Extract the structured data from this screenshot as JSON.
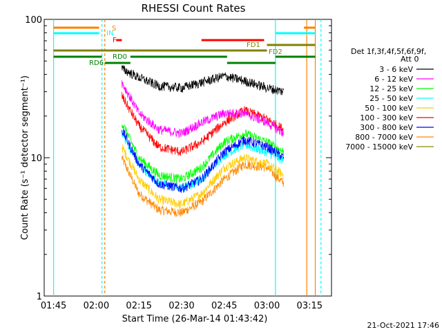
{
  "chart_data": {
    "type": "line",
    "title": "RHESSI Count Rates",
    "xlabel": "Start Time (26-Mar-14 01:43:42)",
    "ylabel": "Count Rate (s⁻¹ detector segment⁻¹)",
    "yscale": "log",
    "ylim": [
      1,
      100
    ],
    "xlim_minutes_after_start": [
      -2.0,
      99.0
    ],
    "x_ticks": [
      "01:45",
      "02:00",
      "02:15",
      "02:30",
      "02:45",
      "03:00",
      "03:15"
    ],
    "y_ticks": [
      "1",
      "10",
      "100"
    ],
    "grid": false,
    "legend_position": "right",
    "legend_header": [
      "Det 1f,3f,4f,5f,6f,9f,",
      "Att 0"
    ],
    "series": [
      {
        "name": "3 - 6 keV",
        "color": "#000000",
        "x": [
          "02:09",
          "02:15",
          "02:22",
          "02:30",
          "02:37",
          "02:45",
          "02:52",
          "03:00",
          "03:06"
        ],
        "values": [
          44,
          38,
          33,
          32,
          35,
          39,
          36,
          32,
          30
        ]
      },
      {
        "name": "6 - 12 keV",
        "color": "#ff00ff",
        "x": [
          "02:09",
          "02:15",
          "02:22",
          "02:30",
          "02:37",
          "02:45",
          "02:52",
          "03:00",
          "03:06"
        ],
        "values": [
          35,
          21,
          16,
          15,
          18,
          21,
          21,
          18,
          15
        ]
      },
      {
        "name": "12 - 25 keV",
        "color": "#00ff00",
        "x": [
          "02:09",
          "02:15",
          "02:22",
          "02:30",
          "02:37",
          "02:45",
          "02:52",
          "03:00",
          "03:06"
        ],
        "values": [
          18,
          10,
          7.5,
          7,
          8.5,
          13,
          15,
          13,
          11
        ]
      },
      {
        "name": "25 - 50 keV",
        "color": "#00ffff",
        "x": [
          "02:09",
          "02:15",
          "02:22",
          "02:30",
          "02:37",
          "02:45",
          "02:52",
          "03:00",
          "03:06"
        ],
        "values": [
          15,
          9,
          6.5,
          6,
          7,
          10.5,
          12.5,
          11,
          9.5
        ]
      },
      {
        "name": "50 - 100 keV",
        "color": "#ffcc00",
        "x": [
          "02:09",
          "02:15",
          "02:22",
          "02:30",
          "02:37",
          "02:45",
          "02:52",
          "03:00",
          "03:06"
        ],
        "values": [
          12,
          7,
          5,
          4.6,
          5.5,
          8.5,
          10,
          9,
          7.5
        ]
      },
      {
        "name": "100 - 300 keV",
        "color": "#ff0000",
        "x": [
          "02:09",
          "02:15",
          "02:22",
          "02:30",
          "02:37",
          "02:45",
          "02:52",
          "03:00",
          "03:06"
        ],
        "values": [
          28,
          17,
          12,
          11,
          13,
          18,
          22,
          19,
          16
        ]
      },
      {
        "name": "300 - 800 keV",
        "color": "#0000ff",
        "x": [
          "02:09",
          "02:15",
          "02:22",
          "02:30",
          "02:37",
          "02:45",
          "02:52",
          "03:00",
          "03:06"
        ],
        "values": [
          16,
          9,
          6.5,
          6,
          7,
          11,
          13.5,
          12,
          10
        ]
      },
      {
        "name": "800 - 7000 keV",
        "color": "#ff8800",
        "x": [
          "02:09",
          "02:15",
          "02:22",
          "02:30",
          "02:37",
          "02:45",
          "02:52",
          "03:00",
          "03:06"
        ],
        "values": [
          10,
          5.5,
          4.2,
          4,
          4.8,
          7,
          9,
          8.5,
          6.5
        ]
      },
      {
        "name": "7000 - 15000 keV",
        "color": "#8b8b00",
        "x": [],
        "values": []
      }
    ],
    "flag_bars": [
      {
        "label": "S",
        "color": "#ff8000",
        "ranges": [
          [
            "01:45",
            "02:01"
          ],
          [
            "03:13",
            "03:17"
          ]
        ]
      },
      {
        "label": "IN",
        "color": "#00ffff",
        "ranges": [
          [
            "01:45",
            "02:01"
          ],
          [
            "03:03",
            "03:17"
          ]
        ]
      },
      {
        "label": "F",
        "color": "#ff0000",
        "ranges": [
          [
            "02:07",
            "02:09"
          ],
          [
            "02:37",
            "02:59"
          ]
        ]
      },
      {
        "label": "FD1",
        "color": "#808000",
        "ranges": [
          [
            "03:00",
            "03:17"
          ]
        ]
      },
      {
        "label": "FD2",
        "color": "#808000",
        "ranges": [
          [
            "01:45",
            "03:00"
          ]
        ]
      },
      {
        "label": "RD0",
        "color": "#008000",
        "ranges": [
          [
            "01:45",
            "02:02"
          ],
          [
            "02:12",
            "02:46"
          ],
          [
            "03:03",
            "03:17"
          ]
        ]
      },
      {
        "label": "RD6",
        "color": "#008000",
        "ranges": [
          [
            "02:03",
            "02:12"
          ],
          [
            "02:46",
            "03:03"
          ]
        ]
      }
    ],
    "vertical_markers": [
      {
        "time": "01:45",
        "color": "#00ffff",
        "style": "solid"
      },
      {
        "time": "02:02",
        "color": "#00ffff",
        "style": "dashed"
      },
      {
        "time": "02:03",
        "color": "#ff8000",
        "style": "dashed"
      },
      {
        "time": "03:03",
        "color": "#00ffff",
        "style": "solid"
      },
      {
        "time": "03:14",
        "color": "#ff8000",
        "style": "solid"
      },
      {
        "time": "03:17",
        "color": "#ff8000",
        "style": "solid"
      },
      {
        "time": "03:19",
        "color": "#00ffff",
        "style": "dashed"
      }
    ],
    "footer_date": "21-Oct-2021 17:46"
  }
}
